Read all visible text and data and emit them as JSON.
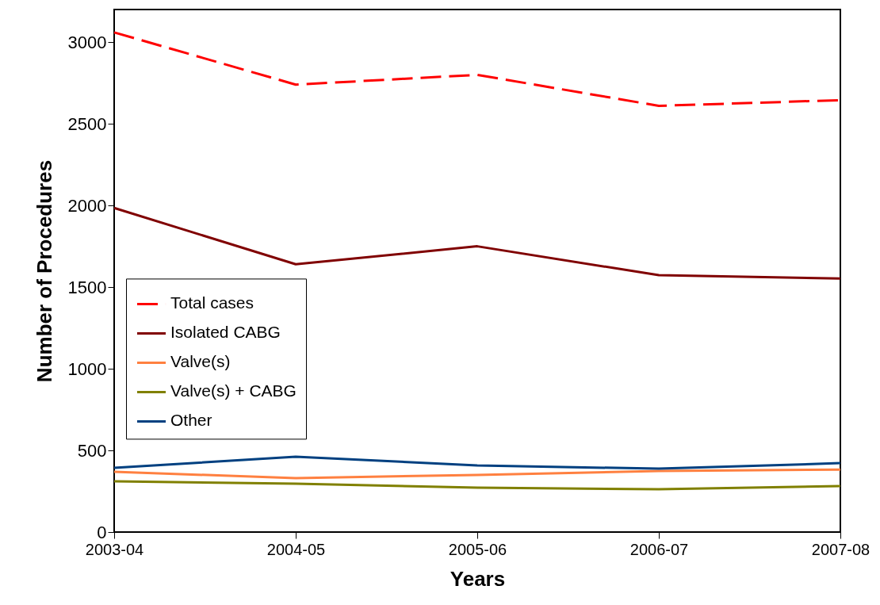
{
  "chart_data": {
    "type": "line",
    "xlabel": "Years",
    "ylabel": "Number of Procedures",
    "categories": [
      "2003-04",
      "2004-05",
      "2005-06",
      "2006-07",
      "2007-08"
    ],
    "series": [
      {
        "name": "Total cases",
        "color": "#ff0000",
        "line_style": "dashed",
        "values": [
          3060,
          2740,
          2800,
          2610,
          2645
        ]
      },
      {
        "name": "Isolated CABG",
        "color": "#800000",
        "line_style": "solid",
        "values": [
          1985,
          1640,
          1750,
          1573,
          1553
        ]
      },
      {
        "name": "Valve(s)",
        "color": "#ff8040",
        "line_style": "solid",
        "values": [
          369,
          330,
          350,
          374,
          383
        ]
      },
      {
        "name": "Valve(s) + CABG",
        "color": "#808000",
        "line_style": "solid",
        "values": [
          311,
          296,
          272,
          262,
          282
        ]
      },
      {
        "name": "Other",
        "color": "#004080",
        "line_style": "solid",
        "values": [
          393,
          461,
          408,
          388,
          422
        ]
      }
    ],
    "ylim": [
      0,
      3200
    ],
    "yticks": [
      0,
      500,
      1000,
      1500,
      2000,
      2500,
      3000
    ],
    "grid": false,
    "legend": "left",
    "marker": "none"
  }
}
